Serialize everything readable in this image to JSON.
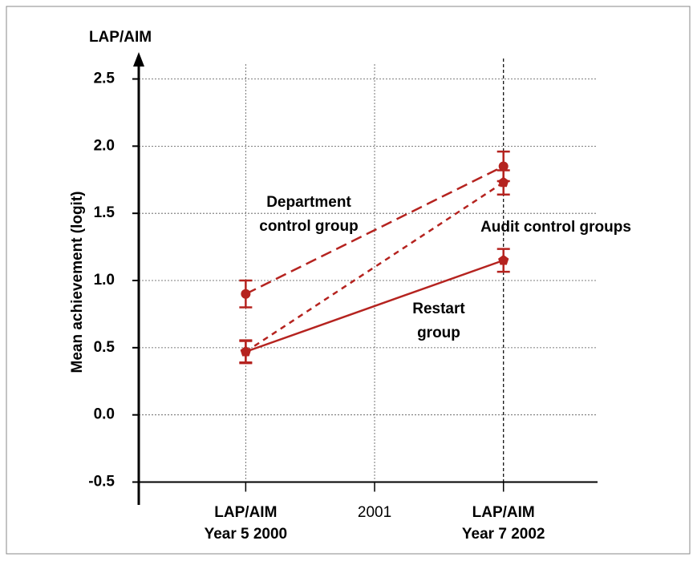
{
  "chart_data": {
    "type": "line",
    "title": "LAP/AIM",
    "y_label": "Mean achievement (logit)",
    "xlim": [
      1999.17,
      2002.73
    ],
    "xticks": [
      {
        "value": 2000,
        "label": "LAP/AIM\nYear 5 2000"
      },
      2001,
      {
        "value": 2002,
        "label": "LAP/AIM\nYear 7 2002"
      }
    ],
    "ylim": [
      -0.67,
      2.7
    ],
    "yticks": [
      -0.5,
      0.0,
      0.5,
      1.0,
      1.5,
      2.0,
      2.5
    ],
    "grid": true,
    "series": [
      {
        "name": "Department control group",
        "color": "#b5231f",
        "dash": "long",
        "marker": "circle",
        "x": [
          2000,
          2002
        ],
        "values": [
          0.9,
          1.85
        ],
        "errors": [
          0.1,
          0.11
        ]
      },
      {
        "name": "Audit control groups",
        "color": "#b5231f",
        "dash": "short",
        "marker": "pentagon",
        "x": [
          2000,
          2002
        ],
        "values": [
          0.47,
          1.73
        ],
        "errors": [
          0.085,
          0.09
        ]
      },
      {
        "name": "Restart group",
        "color": "#b5231f",
        "dash": "solid",
        "marker": "pentagon",
        "x": [
          2000,
          2002
        ],
        "values": [
          0.47,
          1.15
        ],
        "errors": [
          0.08,
          0.085
        ]
      }
    ],
    "annotations": [
      [
        "Department",
        "control group"
      ],
      [
        "Audit control groups"
      ],
      [
        "Restart",
        "group"
      ]
    ]
  }
}
